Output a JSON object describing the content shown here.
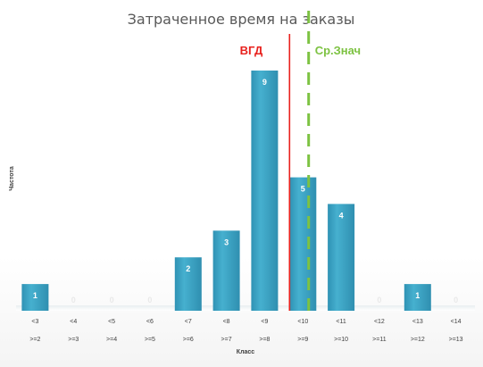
{
  "chart_data": {
    "type": "bar",
    "title": "Затраченное время на заказы",
    "xlabel": "Класс",
    "ylabel": "Частота",
    "categories_top": [
      "<3",
      "<4",
      "<5",
      "<6",
      "<7",
      "<8",
      "<9",
      "<10",
      "<11",
      "<12",
      "<13",
      "<14"
    ],
    "categories_bottom": [
      ">=2",
      ">=3",
      ">=4",
      ">=5",
      ">=6",
      ">=7",
      ">=8",
      ">=9",
      ">=10",
      ">=11",
      ">=12",
      ">=13"
    ],
    "values": [
      1,
      0,
      0,
      0,
      2,
      3,
      9,
      5,
      4,
      0,
      1,
      0
    ],
    "ylim": [
      0,
      9
    ],
    "grid": false,
    "legend": "none",
    "reference_lines": [
      {
        "label": "ВГД",
        "x": 8,
        "color": "#e8211d",
        "style": "solid"
      },
      {
        "label": "Ср.Знач",
        "x": 8.5,
        "color": "#7dc242",
        "style": "dashed"
      }
    ],
    "colors": {
      "bar": "#3fa8c8",
      "bar_dark": "#2f8fb0",
      "bar_label": "#ffffff",
      "zero_label": "#e9e9e9"
    }
  }
}
